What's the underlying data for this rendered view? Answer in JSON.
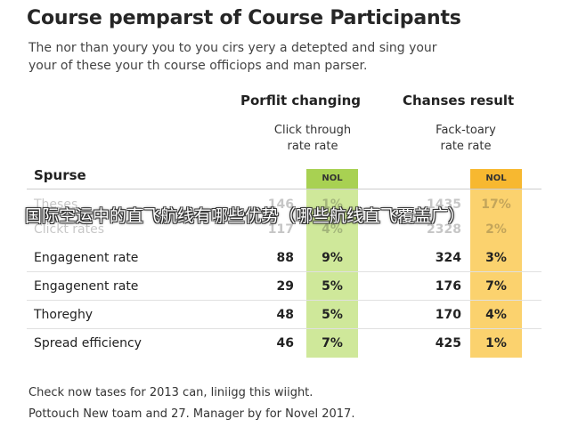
{
  "header": {
    "title": "Course pemparst of Course Participants",
    "subtitle_lines": [
      "The nor than youry you to you cirs yery a detepted and sing your",
      "your of these your th course officiops and man parser."
    ]
  },
  "columns": {
    "group1": {
      "title": "Porflit changing",
      "sub_lines": [
        "Click through",
        "rate rate"
      ],
      "band_label": "NOL",
      "band_color": "#cfe89a",
      "band_head_color": "#a8d152"
    },
    "group2": {
      "title": "Chanses result",
      "sub_lines": [
        "Fack-toary",
        "rate rate"
      ],
      "band_label": "NOL",
      "band_color": "#fbd26e",
      "band_head_color": "#f7b830"
    }
  },
  "table": {
    "section_label": "Spurse",
    "faded_rows": [
      {
        "label": "Theses",
        "v1": "146",
        "p1": "1%",
        "v2": "1435",
        "p2": "17%"
      },
      {
        "label": "Clickt rates",
        "v1": "117",
        "p1": "4%",
        "v2": "2328",
        "p2": "2%"
      }
    ],
    "rows": [
      {
        "label": "Engagenent rate",
        "v1": "88",
        "p1": "9%",
        "v2": "324",
        "p2": "3%"
      },
      {
        "label": "Engagenent rate",
        "v1": "29",
        "p1": "5%",
        "v2": "176",
        "p2": "7%"
      },
      {
        "label": "Thoreghy",
        "v1": "48",
        "p1": "5%",
        "v2": "170",
        "p2": "4%"
      },
      {
        "label": "Spread efficiency",
        "v1": "46",
        "p1": "7%",
        "v2": "425",
        "p2": "1%"
      }
    ]
  },
  "overlay": {
    "text": "国际空运中的直飞航线有哪些优势（哪些航线直飞覆盖广）"
  },
  "footer": {
    "lines": [
      "Check now tases for 2013 can, liniigg this wiight.",
      "Pottouch New toam and 27. Manager by for Novel 2017."
    ]
  }
}
